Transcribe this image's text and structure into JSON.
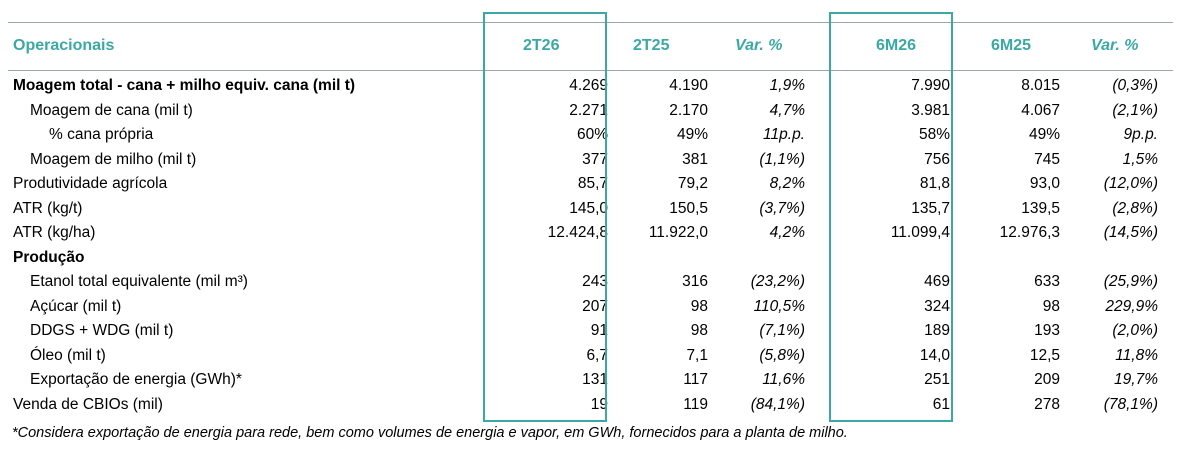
{
  "header": {
    "title": "Operacionais",
    "col_2t26": "2T26",
    "col_2t25": "2T25",
    "col_var1": "Var. %",
    "col_6m26": "6M26",
    "col_6m25": "6M25",
    "col_var2": "Var. %"
  },
  "rows": [
    {
      "label": "Moagem total - cana + milho equiv. cana (mil t)",
      "v2t26": "4.269",
      "v2t25": "4.190",
      "var1": "1,9%",
      "v6m26": "7.990",
      "v6m25": "8.015",
      "var2": "(0,3%)"
    },
    {
      "label": "Moagem de cana (mil t)",
      "v2t26": "2.271",
      "v2t25": "2.170",
      "var1": "4,7%",
      "v6m26": "3.981",
      "v6m25": "4.067",
      "var2": "(2,1%)"
    },
    {
      "label": "% cana própria",
      "v2t26": "60%",
      "v2t25": "49%",
      "var1": "11p.p.",
      "v6m26": "58%",
      "v6m25": "49%",
      "var2": "9p.p."
    },
    {
      "label": "Moagem de milho (mil t)",
      "v2t26": "377",
      "v2t25": "381",
      "var1": "(1,1%)",
      "v6m26": "756",
      "v6m25": "745",
      "var2": "1,5%"
    },
    {
      "label": "Produtividade agrícola",
      "v2t26": "85,7",
      "v2t25": "79,2",
      "var1": "8,2%",
      "v6m26": "81,8",
      "v6m25": "93,0",
      "var2": "(12,0%)"
    },
    {
      "label": "ATR (kg/t)",
      "v2t26": "145,0",
      "v2t25": "150,5",
      "var1": "(3,7%)",
      "v6m26": "135,7",
      "v6m25": "139,5",
      "var2": "(2,8%)"
    },
    {
      "label": "ATR (kg/ha)",
      "v2t26": "12.424,8",
      "v2t25": "11.922,0",
      "var1": "4,2%",
      "v6m26": "11.099,4",
      "v6m25": "12.976,3",
      "var2": "(14,5%)"
    },
    {
      "label": "Produção",
      "v2t26": "",
      "v2t25": "",
      "var1": "",
      "v6m26": "",
      "v6m25": "",
      "var2": ""
    },
    {
      "label": "Etanol total equivalente (mil m³)",
      "v2t26": "243",
      "v2t25": "316",
      "var1": "(23,2%)",
      "v6m26": "469",
      "v6m25": "633",
      "var2": "(25,9%)"
    },
    {
      "label": "Açúcar (mil t)",
      "v2t26": "207",
      "v2t25": "98",
      "var1": "110,5%",
      "v6m26": "324",
      "v6m25": "98",
      "var2": "229,9%"
    },
    {
      "label": "DDGS + WDG (mil t)",
      "v2t26": "91",
      "v2t25": "98",
      "var1": "(7,1%)",
      "v6m26": "189",
      "v6m25": "193",
      "var2": "(2,0%)"
    },
    {
      "label": "Óleo (mil t)",
      "v2t26": "6,7",
      "v2t25": "7,1",
      "var1": "(5,8%)",
      "v6m26": "14,0",
      "v6m25": "12,5",
      "var2": "11,8%"
    },
    {
      "label": "Exportação de energia (GWh)*",
      "v2t26": "131",
      "v2t25": "117",
      "var1": "11,6%",
      "v6m26": "251",
      "v6m25": "209",
      "var2": "19,7%"
    },
    {
      "label": "Venda de CBIOs (mil)",
      "v2t26": "19",
      "v2t25": "119",
      "var1": "(84,1%)",
      "v6m26": "61",
      "v6m25": "278",
      "var2": "(78,1%)"
    }
  ],
  "footnote": "*Considera exportação de energia para rede, bem como volumes de energia e vapor, em GWh, fornecidos para a planta de milho.",
  "colors": {
    "accent": "#3aa9a4",
    "rule": "#9aa6ad"
  }
}
